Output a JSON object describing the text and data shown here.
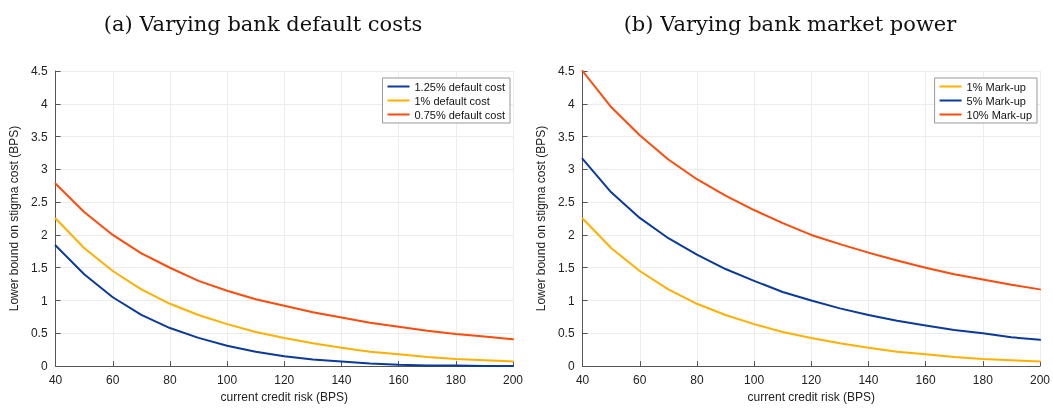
{
  "chart_data": [
    {
      "type": "line",
      "title": "(a) Varying bank default costs",
      "xlabel": "current credit risk (BPS)",
      "ylabel": "Lower bound on stigma cost (BPS)",
      "x": [
        40,
        50,
        60,
        70,
        80,
        90,
        100,
        110,
        120,
        130,
        140,
        150,
        160,
        170,
        180,
        190,
        200
      ],
      "series": [
        {
          "name": "1.25% default cost",
          "color": "#0a3a9c",
          "values": [
            1.84,
            1.4,
            1.05,
            0.78,
            0.58,
            0.43,
            0.31,
            0.22,
            0.15,
            0.1,
            0.07,
            0.04,
            0.02,
            0.01,
            0.01,
            0,
            0
          ]
        },
        {
          "name": "1% default cost",
          "color": "#ffb000",
          "values": [
            2.25,
            1.8,
            1.45,
            1.17,
            0.95,
            0.78,
            0.64,
            0.52,
            0.43,
            0.35,
            0.28,
            0.22,
            0.18,
            0.14,
            0.11,
            0.09,
            0.07
          ]
        },
        {
          "name": "0.75% default cost",
          "color": "#ff4a0a",
          "values": [
            2.78,
            2.35,
            2.0,
            1.72,
            1.5,
            1.3,
            1.15,
            1.02,
            0.92,
            0.82,
            0.74,
            0.66,
            0.6,
            0.54,
            0.49,
            0.45,
            0.41
          ]
        }
      ],
      "xlim": [
        40,
        200
      ],
      "xticks": [
        40,
        60,
        80,
        100,
        120,
        140,
        160,
        180,
        200
      ],
      "ylim": [
        0,
        4.5
      ],
      "yticks": [
        0,
        0.5,
        1,
        1.5,
        2,
        2.5,
        3,
        3.5,
        4,
        4.5
      ],
      "grid": true,
      "legend": "top right",
      "marker": "none",
      "line_style": "solid"
    },
    {
      "type": "line",
      "title": "(b) Varying bank market power",
      "xlabel": "current credit risk (BPS)",
      "ylabel": "Lower bound on stigma cost (BPS)",
      "x": [
        40,
        50,
        60,
        70,
        80,
        90,
        100,
        110,
        120,
        130,
        140,
        150,
        160,
        170,
        180,
        190,
        200
      ],
      "series": [
        {
          "name": "1% Mark-up",
          "color": "#ffb000",
          "values": [
            2.25,
            1.8,
            1.45,
            1.17,
            0.95,
            0.78,
            0.64,
            0.52,
            0.43,
            0.35,
            0.28,
            0.22,
            0.18,
            0.14,
            0.11,
            0.09,
            0.07
          ]
        },
        {
          "name": "5% Mark-up",
          "color": "#0a3a9c",
          "values": [
            3.16,
            2.65,
            2.26,
            1.95,
            1.7,
            1.48,
            1.3,
            1.13,
            1.0,
            0.88,
            0.78,
            0.69,
            0.62,
            0.55,
            0.5,
            0.44,
            0.4
          ]
        },
        {
          "name": "10% Mark-up",
          "color": "#ff4a0a",
          "values": [
            4.5,
            3.95,
            3.52,
            3.15,
            2.85,
            2.6,
            2.38,
            2.18,
            2.0,
            1.86,
            1.73,
            1.61,
            1.5,
            1.4,
            1.32,
            1.24,
            1.17
          ]
        }
      ],
      "xlim": [
        40,
        200
      ],
      "xticks": [
        40,
        60,
        80,
        100,
        120,
        140,
        160,
        180,
        200
      ],
      "ylim": [
        0,
        4.5
      ],
      "yticks": [
        0,
        0.5,
        1,
        1.5,
        2,
        2.5,
        3,
        3.5,
        4,
        4.5
      ],
      "grid": true,
      "legend": "top right",
      "marker": "none",
      "line_style": "solid"
    }
  ]
}
